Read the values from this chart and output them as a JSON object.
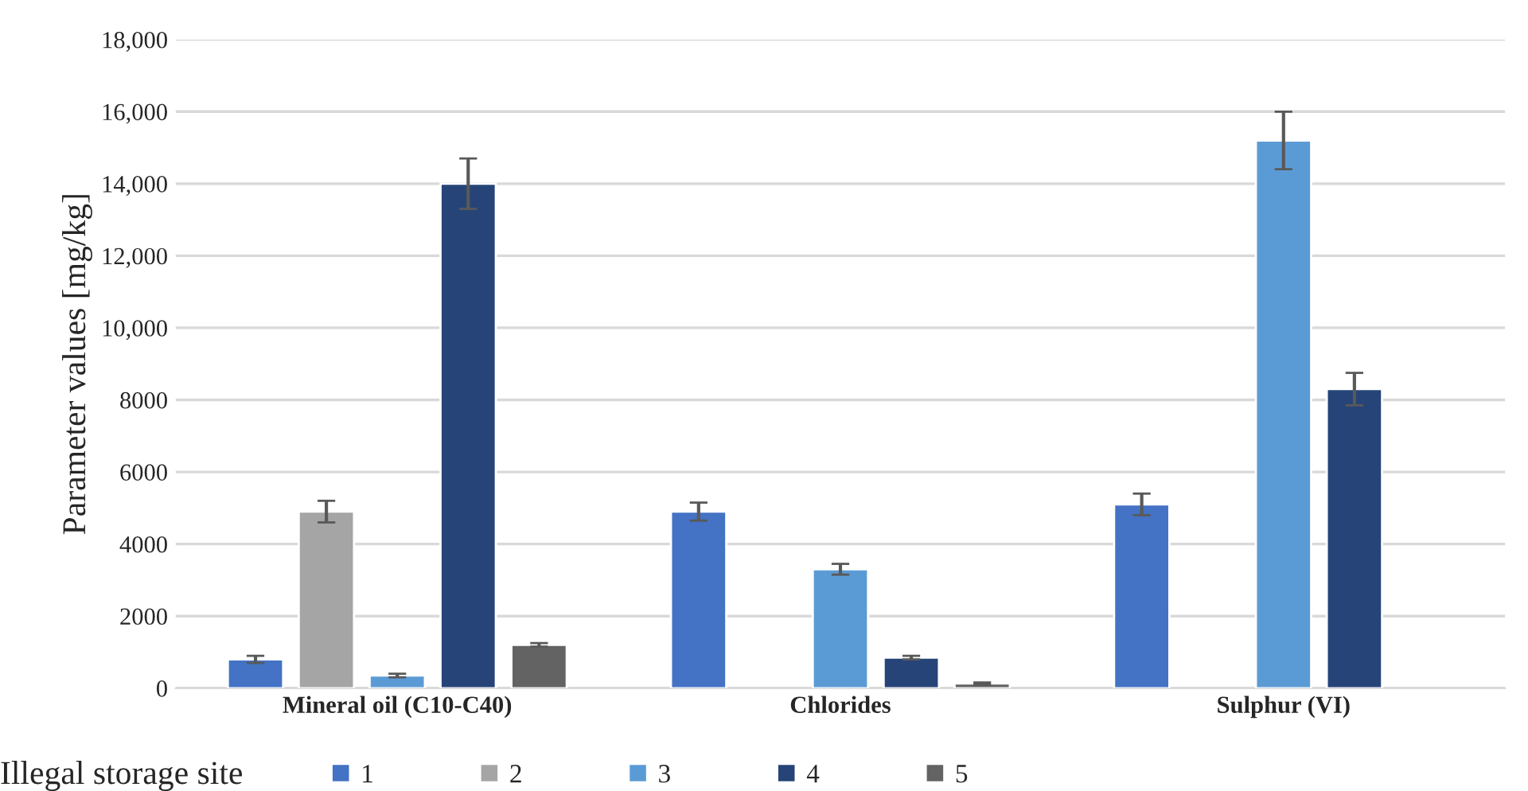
{
  "chart_data": {
    "type": "bar",
    "ylabel": "Parameter values [mg/kg]",
    "legend_title": "Illegal storage site",
    "categories": [
      "Mineral oil (C10-C40)",
      "Chlorides",
      "Sulphur (VI)"
    ],
    "series": [
      {
        "name": "1",
        "color": "#4472c4",
        "values": [
          800,
          4900,
          5100
        ],
        "errors": [
          100,
          250,
          300
        ]
      },
      {
        "name": "2",
        "color": "#a5a5a5",
        "values": [
          4900,
          null,
          null
        ],
        "errors": [
          300,
          null,
          null
        ]
      },
      {
        "name": "3",
        "color": "#5b9bd5",
        "values": [
          350,
          3300,
          15200
        ],
        "errors": [
          50,
          150,
          800
        ]
      },
      {
        "name": "4",
        "color": "#264478",
        "values": [
          14000,
          850,
          8300
        ],
        "errors": [
          700,
          50,
          450
        ]
      },
      {
        "name": "5",
        "color": "#636363",
        "values": [
          1200,
          130,
          null
        ],
        "errors": [
          50,
          30,
          null
        ]
      }
    ],
    "ylim": [
      0,
      18000
    ],
    "yticks": [
      0,
      2000,
      4000,
      6000,
      8000,
      {
        "value": 10000,
        "label": "10,000"
      },
      {
        "value": 12000,
        "label": "12,000"
      },
      {
        "value": 14000,
        "label": "14,000"
      },
      {
        "value": 16000,
        "label": "16,000"
      },
      {
        "value": 18000,
        "label": "18,000"
      }
    ],
    "grid": "y",
    "legend": "bottom"
  }
}
